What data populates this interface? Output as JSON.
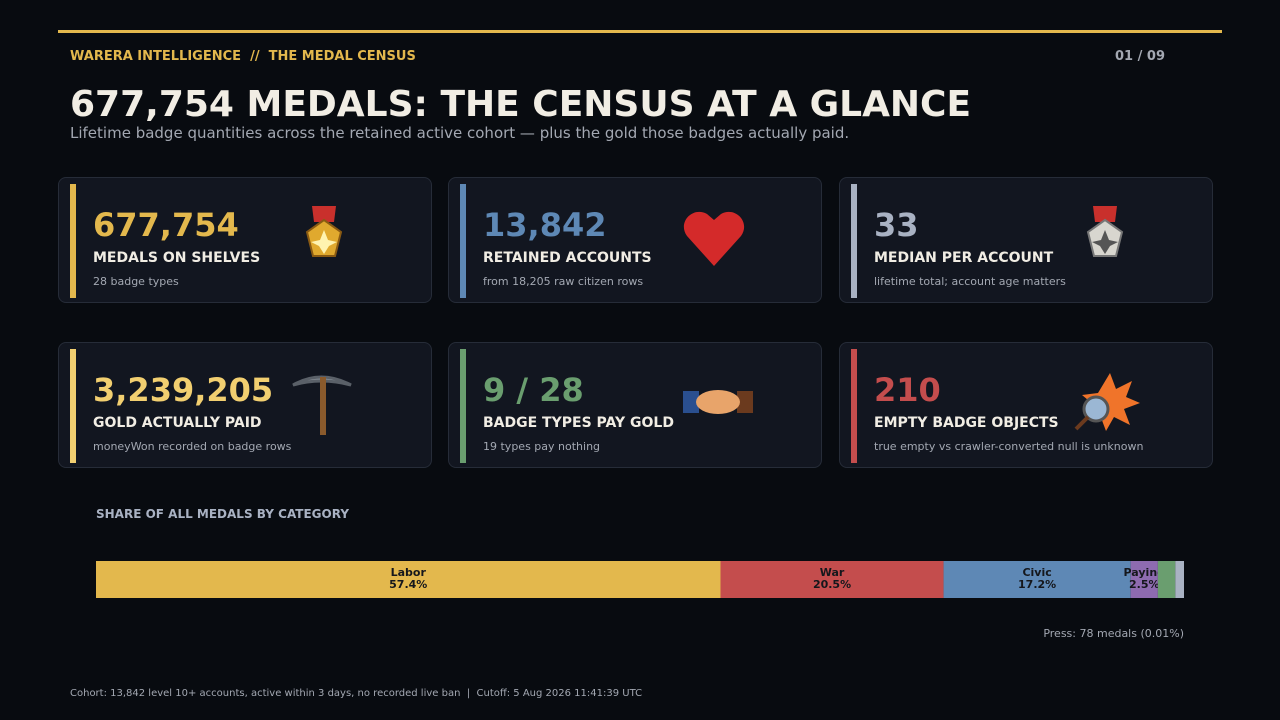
{
  "header": {
    "kicker": "WARERA INTELLIGENCE  //  THE MEDAL CENSUS",
    "page": "01 / 09",
    "title": "677,754 MEDALS: THE CENSUS AT A GLANCE",
    "subtitle": "Lifetime badge quantities across the retained active cohort — plus the gold those badges actually paid."
  },
  "cards": [
    {
      "value": "677,754",
      "label": "MEDALS ON SHELVES",
      "note": "28 badge types",
      "accent": "#e3b84d"
    },
    {
      "value": "13,842",
      "label": "RETAINED ACCOUNTS",
      "note": "from 18,205 raw citizen rows",
      "accent": "#5e88b5"
    },
    {
      "value": "33",
      "label": "MEDIAN PER ACCOUNT",
      "note": "lifetime total; account age matters",
      "accent": "#a9b2c3"
    },
    {
      "value": "3,239,205",
      "label": "GOLD ACTUALLY PAID",
      "note": "moneyWon recorded on badge rows",
      "accent": "#f2cf70"
    },
    {
      "value": "9 / 28",
      "label": "BADGE TYPES PAY GOLD",
      "note": "19 types pay nothing",
      "accent": "#6a9e6f"
    },
    {
      "value": "210",
      "label": "EMPTY BADGE OBJECTS",
      "note": "true empty vs crawler-converted null is unknown",
      "accent": "#c44d4d"
    }
  ],
  "chart_data": {
    "type": "bar",
    "title": "SHARE OF ALL MEDALS BY CATEGORY",
    "categories": [
      "Labor",
      "War",
      "Civic",
      "Paying",
      null,
      null
    ],
    "values": [
      57.4,
      20.5,
      17.2,
      2.5,
      1.6,
      0.8
    ],
    "value_labels": [
      "57.4%",
      "20.5%",
      "17.2%",
      "2.5%",
      null,
      null
    ],
    "colors": [
      "#e3b84d",
      "#c44d4d",
      "#5e88b5",
      "#8e6bb0",
      "#6a9e6f",
      "#a9b2c3"
    ],
    "xlim": [
      0,
      100
    ],
    "annotation": "Press: 78 medals (0.01%)"
  },
  "footer": "Cohort: 13,842 level 10+ accounts, active within 3 days, no recorded live ban  |  Cutoff: 5 Aug 2026 11:41:39 UTC"
}
